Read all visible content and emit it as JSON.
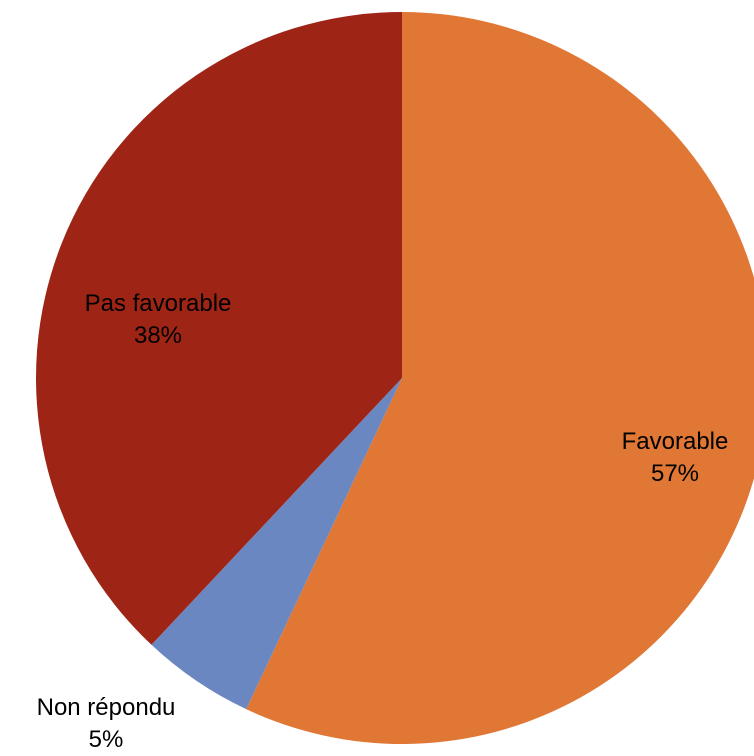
{
  "chart_data": {
    "type": "pie",
    "slices": [
      {
        "label": "Favorable",
        "value": 57,
        "value_label": "57%",
        "color": "#E07734"
      },
      {
        "label": "Non répondu",
        "value": 5,
        "value_label": "5%",
        "color": "#6A87C1"
      },
      {
        "label": "Pas favorable",
        "value": 38,
        "value_label": "38%",
        "color": "#9E2515"
      }
    ],
    "start": "12 o'clock",
    "direction": "clockwise",
    "legend": "none",
    "data_labels": "category and percent"
  }
}
